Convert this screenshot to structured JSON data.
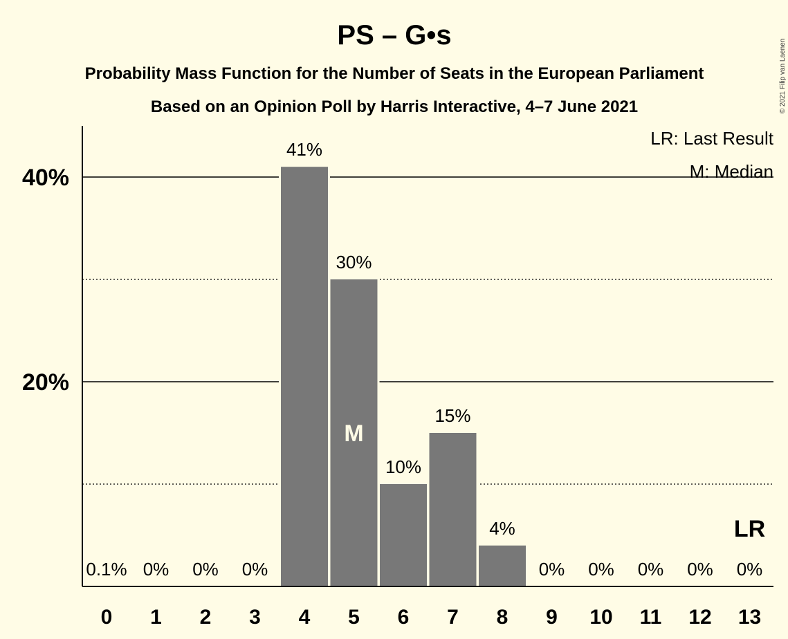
{
  "title": "PS – G•s",
  "subtitle1": "Probability Mass Function for the Number of Seats in the European Parliament",
  "subtitle2": "Based on an Opinion Poll by Harris Interactive, 4–7 June 2021",
  "copyright": "© 2021 Filip van Laenen",
  "legend": {
    "last_result": "LR: Last Result",
    "median": "M: Median"
  },
  "colors": {
    "background": "#FFFCE6",
    "bar": "#787878",
    "median_marker": "#FFFCE6"
  },
  "chart_data": {
    "type": "bar",
    "categories": [
      "0",
      "1",
      "2",
      "3",
      "4",
      "5",
      "6",
      "7",
      "8",
      "9",
      "10",
      "11",
      "12",
      "13"
    ],
    "values": [
      0.1,
      0,
      0,
      0,
      41,
      30,
      10,
      15,
      4,
      0,
      0,
      0,
      0,
      0
    ],
    "value_labels": [
      "0.1%",
      "0%",
      "0%",
      "0%",
      "41%",
      "30%",
      "10%",
      "15%",
      "4%",
      "0%",
      "0%",
      "0%",
      "0%",
      "0%"
    ],
    "ylim": [
      0,
      45
    ],
    "yticks_major": [
      20,
      40
    ],
    "ytick_labels": [
      "20%",
      "40%"
    ],
    "yticks_minor": [
      10,
      30
    ],
    "median_index": 5,
    "median_marker": "M",
    "last_result_index": 13,
    "last_result_marker": "LR",
    "grid": true,
    "legend_position": "top-right"
  }
}
